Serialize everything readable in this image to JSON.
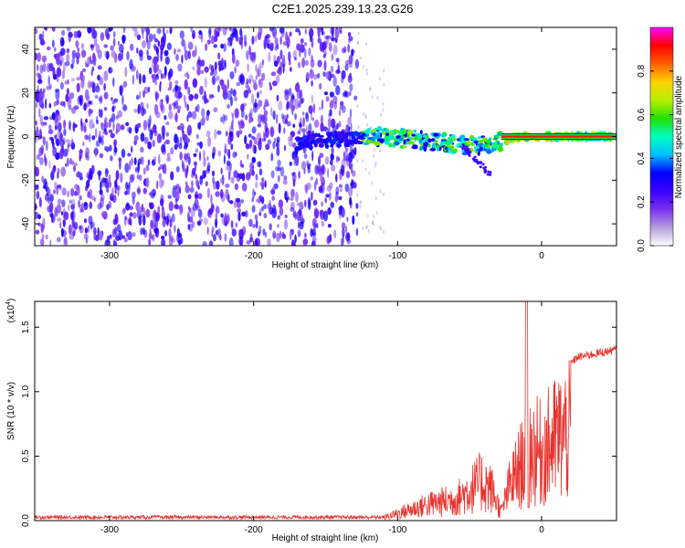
{
  "title": "C2E1.2025.239.13.23.G26",
  "chart_data": [
    {
      "type": "heatmap",
      "xlabel": "Height of straight line (km)",
      "ylabel": "Frequency (Hz)",
      "xlim": [
        -352,
        52
      ],
      "ylim": [
        -50,
        50
      ],
      "xticks": [
        -300,
        -200,
        -100,
        0
      ],
      "xtick_labels": [
        "-300",
        "-200",
        "-100",
        "0"
      ],
      "yticks": [
        -40,
        -20,
        0,
        20,
        40
      ],
      "ytick_labels": [
        "-40",
        "-20",
        "0",
        "20",
        "40"
      ],
      "colorbar": {
        "label": "Normalized spectral amplitude",
        "range": [
          0,
          1
        ],
        "ticks": [
          0.0,
          0.2,
          0.4,
          0.6,
          0.8
        ],
        "tick_labels": [
          "0.0",
          "0.2",
          "0.4",
          "0.6",
          "0.8"
        ],
        "colors": [
          "#ffffff",
          "#b39ddb",
          "#7a2ff0",
          "#3a00ff",
          "#0000ff",
          "#00bfff",
          "#00ffc0",
          "#22e000",
          "#b8f000",
          "#ffd000",
          "#ff6000",
          "#ff0000",
          "#ff00ff"
        ]
      },
      "noise_region_x": [
        -352,
        -128
      ],
      "signal_track": [
        {
          "x": -170,
          "f": -3
        },
        {
          "x": -140,
          "f": -1
        },
        {
          "x": -110,
          "f": 0
        },
        {
          "x": -80,
          "f": -2
        },
        {
          "x": -55,
          "f": -4
        },
        {
          "x": -35,
          "f": -4
        },
        {
          "x": -28,
          "f": -2
        },
        {
          "x": -15,
          "f": 0
        },
        {
          "x": 0,
          "f": 0
        },
        {
          "x": 50,
          "f": 0
        }
      ]
    },
    {
      "type": "line",
      "xlabel": "Height of straight line (km)",
      "ylabel": "SNR (10 * v/v)",
      "multiplier_label": "(x10",
      "multiplier_exp": "4",
      "xlim": [
        -352,
        52
      ],
      "ylim": [
        0,
        1.7
      ],
      "xticks": [
        -300,
        -200,
        -100,
        0
      ],
      "xtick_labels": [
        "-300",
        "-200",
        "-100",
        "0"
      ],
      "yticks": [
        0.0,
        0.5,
        1.0,
        1.5
      ],
      "ytick_labels": [
        "0.0",
        "0.5",
        "1.0",
        "1.5"
      ],
      "color": "#e8322d",
      "envelope": [
        {
          "x": -352,
          "y": 0.04
        },
        {
          "x": -110,
          "y": 0.04
        },
        {
          "x": -100,
          "y": 0.1
        },
        {
          "x": -80,
          "y": 0.22
        },
        {
          "x": -60,
          "y": 0.3
        },
        {
          "x": -50,
          "y": 0.42
        },
        {
          "x": -42,
          "y": 0.55
        },
        {
          "x": -35,
          "y": 0.45
        },
        {
          "x": -28,
          "y": 0.12
        },
        {
          "x": -22,
          "y": 0.5
        },
        {
          "x": -15,
          "y": 0.75
        },
        {
          "x": -10,
          "y": 1.0
        },
        {
          "x": 0,
          "y": 0.95
        },
        {
          "x": 10,
          "y": 1.15
        },
        {
          "x": 25,
          "y": 1.3
        },
        {
          "x": 52,
          "y": 1.36
        }
      ]
    }
  ]
}
